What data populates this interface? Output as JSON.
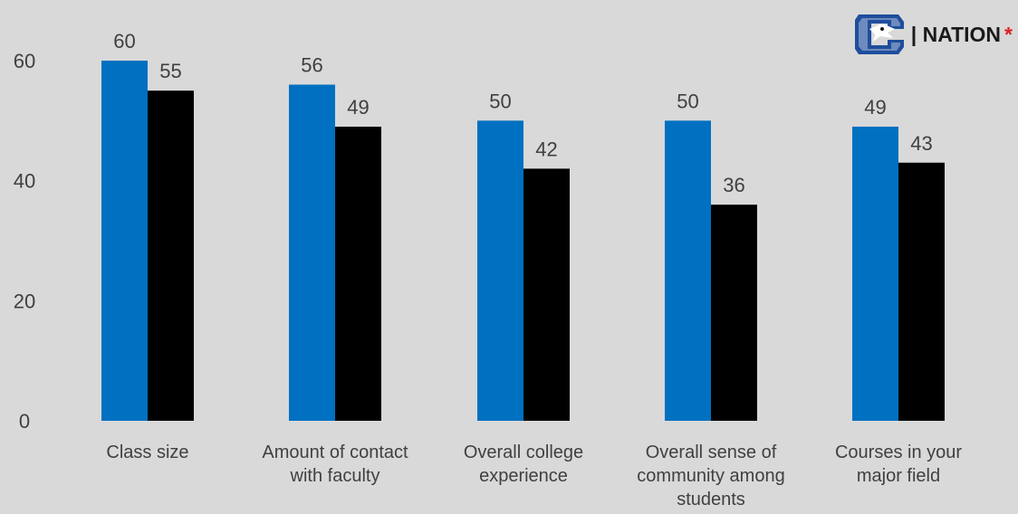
{
  "chart_data": {
    "type": "bar",
    "categories": [
      [
        "Class size"
      ],
      [
        "Amount of contact",
        "with faculty"
      ],
      [
        "Overall college",
        "experience"
      ],
      [
        "Overall sense of",
        "community among",
        "students"
      ],
      [
        "Courses in your",
        "major field"
      ]
    ],
    "series": [
      {
        "values": [
          60,
          56,
          50,
          50,
          49
        ],
        "color": "#0070c0"
      },
      {
        "name": "| NATION",
        "values": [
          55,
          49,
          42,
          36,
          43
        ],
        "color": "#000000"
      }
    ],
    "yticks": [
      0,
      20,
      40,
      60
    ],
    "ylim": [
      0,
      60
    ],
    "legend_placement": "top-right",
    "grid": false
  },
  "legend": {
    "text": "| NATION",
    "marker": "*",
    "marker_color": "#e02020",
    "icon": "bluejay-logo-icon"
  }
}
